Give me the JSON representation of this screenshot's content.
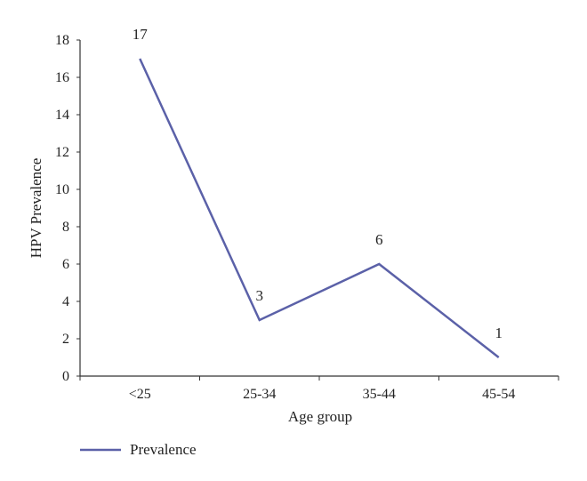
{
  "chart_data": {
    "type": "line",
    "categories": [
      "<25",
      "25-34",
      "35-44",
      "45-54"
    ],
    "series": [
      {
        "name": "Prevalence",
        "values": [
          17,
          3,
          6,
          1
        ],
        "color": "#5b61a8"
      }
    ],
    "data_labels": [
      "17",
      "3",
      "6",
      "1"
    ],
    "xlabel": "Age group",
    "ylabel": "HPV Prevalence",
    "ylim": [
      0,
      18
    ],
    "yticks": [
      0,
      2,
      4,
      6,
      8,
      10,
      12,
      14,
      16,
      18
    ],
    "grid": false,
    "legend_position": "bottom-left"
  }
}
